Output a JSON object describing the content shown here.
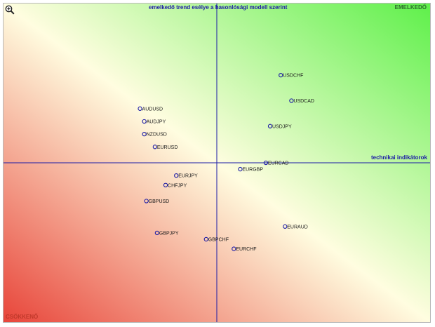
{
  "chart_data": {
    "type": "scatter",
    "xlabel": "technikai indikátorok",
    "ylabel": "emelkedő trend esélye a hasonlósági modell szerint",
    "corner_top_right": "EMELKEDŐ",
    "corner_bottom_left": "CSÖKKENŐ",
    "xlim": [
      -1,
      1
    ],
    "ylim": [
      -1,
      1
    ],
    "grid": false,
    "colors": {
      "axis": "#1a1aa6",
      "marker": "#1a1aa6",
      "down": "#e8453a",
      "neutral": "#fffde0",
      "up": "#5ef04a"
    },
    "points": [
      {
        "label": "USDCHF",
        "x": 0.3,
        "y": 0.55
      },
      {
        "label": "USDCAD",
        "x": 0.35,
        "y": 0.39
      },
      {
        "label": "USDJPY",
        "x": 0.25,
        "y": 0.23
      },
      {
        "label": "AUDUSD",
        "x": -0.36,
        "y": 0.34
      },
      {
        "label": "AUDJPY",
        "x": -0.34,
        "y": 0.26
      },
      {
        "label": "NZDUSD",
        "x": -0.34,
        "y": 0.18
      },
      {
        "label": "EURUSD",
        "x": -0.29,
        "y": 0.1
      },
      {
        "label": "EURCAD",
        "x": 0.23,
        "y": 0.0
      },
      {
        "label": "EURGBP",
        "x": 0.11,
        "y": -0.04
      },
      {
        "label": "EURJPY",
        "x": -0.19,
        "y": -0.08
      },
      {
        "label": "CHFJPY",
        "x": -0.24,
        "y": -0.14
      },
      {
        "label": "GBPUSD",
        "x": -0.33,
        "y": -0.24
      },
      {
        "label": "GBPJPY",
        "x": -0.28,
        "y": -0.44
      },
      {
        "label": "GBPCHF",
        "x": -0.05,
        "y": -0.48
      },
      {
        "label": "EURAUD",
        "x": 0.32,
        "y": -0.4
      },
      {
        "label": "EURCHF",
        "x": 0.08,
        "y": -0.54
      }
    ]
  }
}
